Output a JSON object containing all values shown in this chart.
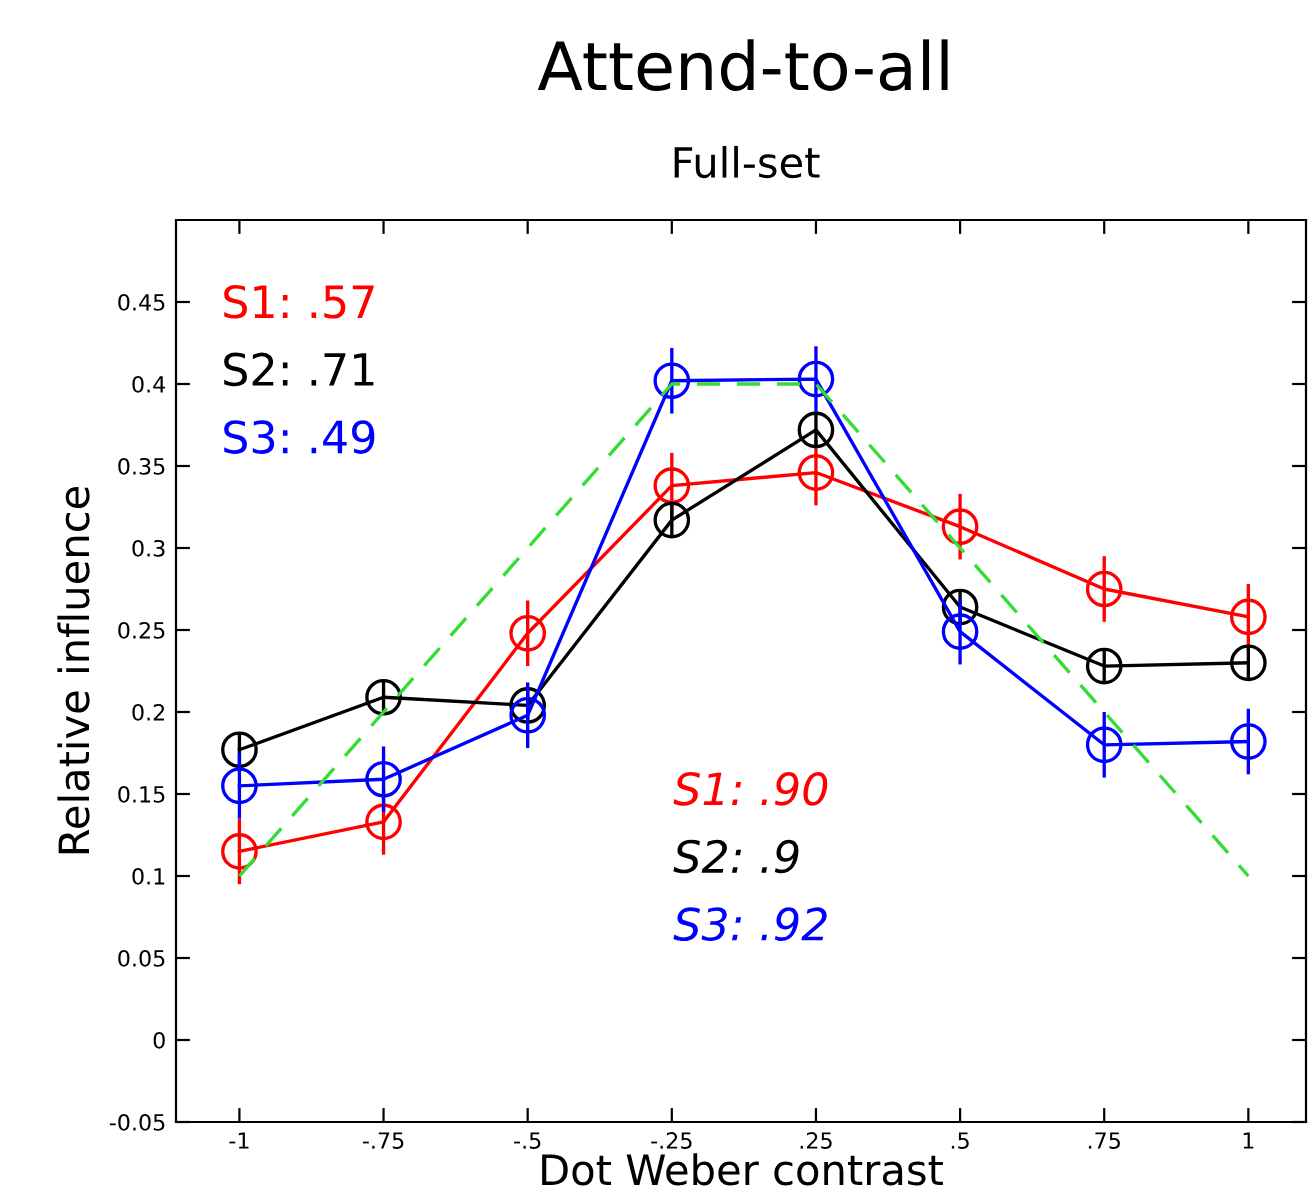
{
  "chart_data": {
    "type": "line",
    "title": "Attend-to-all",
    "subtitle": "Full-set",
    "xlabel": "Dot Weber contrast",
    "ylabel": "Relative influence",
    "categories": [
      "-1",
      "-.75",
      "-.5",
      "-.25",
      ".25",
      ".5",
      ".75",
      "1"
    ],
    "series": [
      {
        "color": "#ff0000",
        "values": [
          0.115,
          0.133,
          0.248,
          0.338,
          0.346,
          0.313,
          0.275,
          0.258
        ],
        "errors": [
          0.02,
          0.02,
          0.02,
          0.02,
          0.02,
          0.02,
          0.02,
          0.02
        ]
      },
      {
        "color": "#000000",
        "values": [
          0.177,
          0.209,
          0.204,
          0.317,
          0.372,
          0.264,
          0.228,
          0.23
        ],
        "errors": [
          0.01,
          0.01,
          0.01,
          0.01,
          0.01,
          0.01,
          0.01,
          0.01
        ]
      },
      {
        "color": "#0000ff",
        "values": [
          0.155,
          0.159,
          0.198,
          0.402,
          0.403,
          0.249,
          0.18,
          0.182
        ],
        "errors": [
          0.02,
          0.02,
          0.02,
          0.02,
          0.02,
          0.02,
          0.02,
          0.02
        ]
      },
      {
        "color": "#33dd33",
        "values": [
          0.1,
          0.2,
          0.3,
          0.4,
          0.4,
          0.3,
          0.2,
          0.1
        ],
        "marker": "none",
        "line_style": "dashed"
      }
    ],
    "annotations": [
      "S1: .57",
      "S2: .71",
      "S3: .49",
      "S1: .90",
      "S2: .9",
      "S3: .92"
    ],
    "marker": "circle",
    "line_style": "solid",
    "grid": false,
    "legend": false,
    "ylim": [
      -0.05,
      0.5
    ],
    "yticks": [
      -0.05,
      0,
      0.05,
      0.1,
      0.15,
      0.2,
      0.25,
      0.3,
      0.35,
      0.4,
      0.45
    ]
  }
}
